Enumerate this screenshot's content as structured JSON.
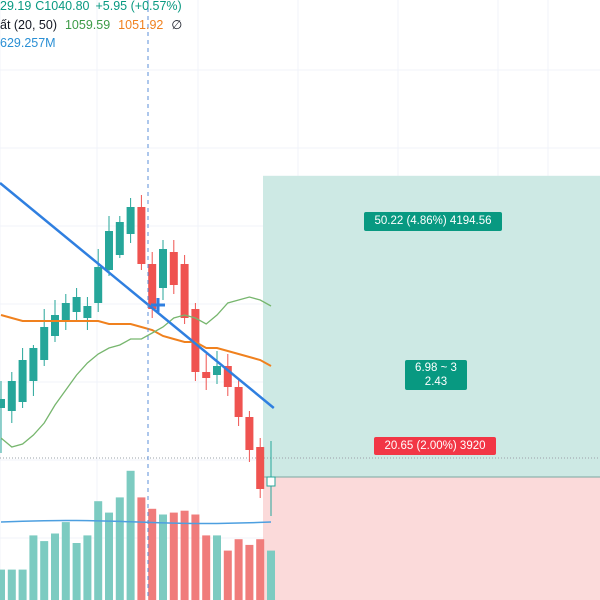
{
  "legend": {
    "ohlc_partial": "29.19",
    "close": "C1040.80",
    "change": "+5.95 (+0.57%)",
    "indicator_name": "ất (20, 50)",
    "ma_fast": "1059.59",
    "ma_slow": "1051.92",
    "null_symbol": "∅",
    "volume": "629.257M"
  },
  "position_tool": {
    "profit_text": "50.22 (4.86%) 4194.56",
    "loss_text": "20.65 (2.00%) 3920",
    "ratio_line1": "6.98 ~ 3",
    "ratio_line2": "2.43"
  },
  "colors": {
    "up": "#26a69a",
    "down": "#ef5350",
    "ma_fast": "#77b66e",
    "ma_slow": "#f0811e",
    "trend": "#2f7fe0",
    "vol_ma": "#4d9fe0",
    "profit_zone": "#cde9e4",
    "loss_zone": "#fbdada",
    "grid": "#f0f3fa",
    "text_dark": "#131722",
    "text_green": "#089981",
    "text_blue": "#2962ff"
  },
  "chart_data": {
    "type": "candlestick",
    "candles": [
      {
        "o": 1025.0,
        "h": 1029.5,
        "l": 1017.5,
        "c": 1026.5
      },
      {
        "o": 1024.5,
        "h": 1031.0,
        "l": 1022.5,
        "c": 1029.5
      },
      {
        "o": 1026.0,
        "h": 1035.0,
        "l": 1025.0,
        "c": 1033.0
      },
      {
        "o": 1029.5,
        "h": 1035.5,
        "l": 1027.0,
        "c": 1035.0
      },
      {
        "o": 1033.0,
        "h": 1041.5,
        "l": 1032.0,
        "c": 1038.5
      },
      {
        "o": 1037.0,
        "h": 1043.0,
        "l": 1036.0,
        "c": 1040.5
      },
      {
        "o": 1039.5,
        "h": 1044.0,
        "l": 1038.0,
        "c": 1042.5
      },
      {
        "o": 1041.0,
        "h": 1045.0,
        "l": 1039.5,
        "c": 1043.5
      },
      {
        "o": 1040.0,
        "h": 1043.5,
        "l": 1038.0,
        "c": 1042.0
      },
      {
        "o": 1042.5,
        "h": 1051.5,
        "l": 1041.0,
        "c": 1048.5
      },
      {
        "o": 1048.0,
        "h": 1057.0,
        "l": 1047.0,
        "c": 1054.5
      },
      {
        "o": 1050.5,
        "h": 1057.0,
        "l": 1050.0,
        "c": 1056.0
      },
      {
        "o": 1054.0,
        "h": 1060.0,
        "l": 1052.5,
        "c": 1058.5
      },
      {
        "o": 1058.5,
        "h": 1060.5,
        "l": 1048.0,
        "c": 1049.0
      },
      {
        "o": 1049.0,
        "h": 1051.0,
        "l": 1040.0,
        "c": 1041.5
      },
      {
        "o": 1045.0,
        "h": 1053.0,
        "l": 1043.0,
        "c": 1051.5
      },
      {
        "o": 1051.0,
        "h": 1053.0,
        "l": 1044.0,
        "c": 1045.5
      },
      {
        "o": 1049.0,
        "h": 1050.5,
        "l": 1039.0,
        "c": 1040.0
      },
      {
        "o": 1041.5,
        "h": 1042.5,
        "l": 1029.5,
        "c": 1031.0
      },
      {
        "o": 1031.0,
        "h": 1034.0,
        "l": 1028.0,
        "c": 1030.0
      },
      {
        "o": 1030.5,
        "h": 1034.5,
        "l": 1029.0,
        "c": 1032.0
      },
      {
        "o": 1032.0,
        "h": 1034.0,
        "l": 1027.0,
        "c": 1028.5
      },
      {
        "o": 1028.5,
        "h": 1030.0,
        "l": 1022.0,
        "c": 1023.5
      },
      {
        "o": 1023.5,
        "h": 1024.5,
        "l": 1016.0,
        "c": 1018.0
      },
      {
        "o": 1018.5,
        "h": 1020.0,
        "l": 1010.0,
        "c": 1011.5
      },
      {
        "o": 1012.0,
        "h": 1019.5,
        "l": 1007.0,
        "c": 1013.5
      }
    ],
    "volume": [
      0.16,
      0.16,
      0.16,
      0.34,
      0.31,
      0.35,
      0.41,
      0.3,
      0.34,
      0.52,
      0.46,
      0.54,
      0.68,
      0.54,
      0.48,
      0.45,
      0.46,
      0.47,
      0.45,
      0.34,
      0.34,
      0.26,
      0.32,
      0.29,
      0.32,
      0.26
    ],
    "ma_fast": [
      1020,
      1018.5,
      1019,
      1020.5,
      1022.5,
      1025.5,
      1028,
      1030.5,
      1032.5,
      1034,
      1035,
      1035.5,
      1036.5,
      1036.5,
      1037.5,
      1038.5,
      1040,
      1040.5,
      1040,
      1039,
      1040.5,
      1042.5,
      1043,
      1043.5,
      1043,
      1042
    ],
    "ma_slow": [
      1040.5,
      1040,
      1039.5,
      1039.5,
      1039.5,
      1039.5,
      1039.5,
      1039.5,
      1039.5,
      1039.5,
      1039,
      1039,
      1039,
      1038.5,
      1038,
      1037,
      1036.5,
      1036,
      1036,
      1035,
      1035,
      1034.5,
      1034,
      1033.5,
      1033,
      1032
    ],
    "trend_line": [
      [
        0,
        1062.5
      ],
      [
        26,
        1025.0
      ]
    ],
    "position": {
      "entry": 1013.5,
      "target": 1063.7,
      "stop": 992.9
    },
    "price_range": [
      988,
      1088
    ],
    "volume_range": [
      0,
      1
    ]
  }
}
